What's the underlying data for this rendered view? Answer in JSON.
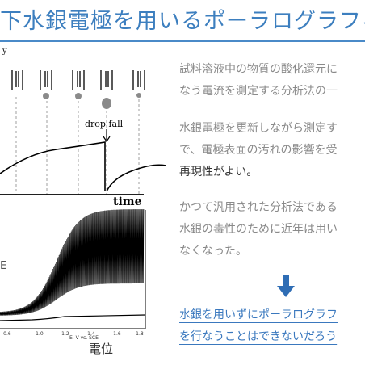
{
  "slide": {
    "title": "下水銀電極を用いるポーラログラフィー"
  },
  "figure": {
    "top_ylabel_fragment": "y",
    "drop_fall_label": "drop fall",
    "time_label": "time",
    "left_axis_fragment": "E",
    "xaxis_label": "電位",
    "tick_labels": [
      "-0.6",
      "-1.0",
      "-1.2",
      "-1.4",
      "-1.6",
      "-1.8"
    ],
    "axis_unit_fragment": "E, V vs. SCE"
  },
  "text": {
    "p1_line1": "試料溶液中の物質の酸化還元に",
    "p1_line2": "なう電流を測定する分析法の一",
    "p2_line1": "水銀電極を更新しながら測定す",
    "p2_line2": "で、電極表面の汚れの影響を受",
    "p2_line3": "再現性がよい。",
    "p3_line1": "かつて汎用された分析法である",
    "p3_line2": "水銀の毒性のために近年は用い",
    "p3_line3": "なくなった。",
    "q_line1": "水銀を用いずにポーラログラフ",
    "q_line2": "を行なうことはできないだろう"
  },
  "colors": {
    "title": "#3d7fbf",
    "body_text": "#8a8a8a",
    "emphasis_text": "#333333",
    "question_text": "#3a78be",
    "arrow": "#2f6db5"
  }
}
